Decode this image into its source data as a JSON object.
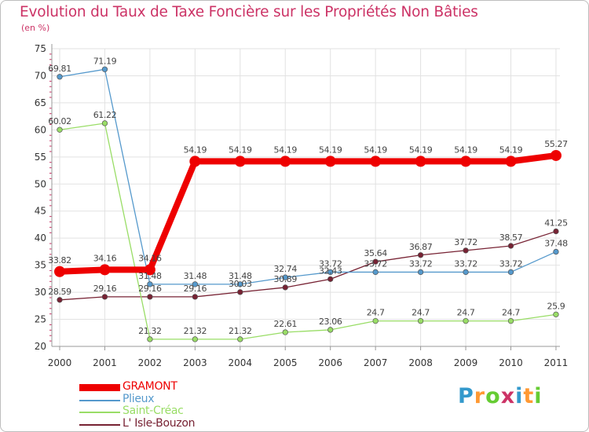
{
  "title": "Evolution du Taux de Taxe Foncière sur les Propriétés Non Bâties",
  "unit": "(en %)",
  "logo": {
    "letters": [
      "P",
      "r",
      "o",
      "x",
      "i",
      "t",
      "i"
    ],
    "colors": [
      "#3399cc",
      "#ff9933",
      "#66cc33",
      "#cc3366",
      "#3399cc",
      "#ff9933",
      "#66cc33"
    ]
  },
  "chart_data": {
    "type": "line",
    "title": "Evolution du Taux de Taxe Foncière sur les Propriétés Non Bâties",
    "ylabel": "(en %)",
    "xlabel": "",
    "ylim": [
      20,
      75
    ],
    "yticks": [
      20,
      25,
      30,
      35,
      40,
      45,
      50,
      55,
      60,
      65,
      70,
      75
    ],
    "grid": true,
    "legend": "bottom-left",
    "x": [
      "2000",
      "2001",
      "2002",
      "2003",
      "2004",
      "2005",
      "2006",
      "2007",
      "2008",
      "2009",
      "2010",
      "2011"
    ],
    "series": [
      {
        "name": "GRAMONT",
        "color": "#ee0000",
        "values": [
          33.82,
          34.16,
          34.16,
          54.19,
          54.19,
          54.19,
          54.19,
          54.19,
          54.19,
          54.19,
          54.19,
          55.27
        ],
        "labels": [
          "33.82",
          "34.16",
          "34.16",
          "54.19",
          "54.19",
          "54.19",
          "54.19",
          "54.19",
          "54.19",
          "54.19",
          "54.19",
          "55.27"
        ]
      },
      {
        "name": "Plieux",
        "color": "#5599cc",
        "values": [
          69.81,
          71.19,
          31.48,
          31.48,
          31.48,
          32.74,
          33.72,
          33.72,
          33.72,
          33.72,
          33.72,
          37.48
        ],
        "labels": [
          "69.81",
          "71.19",
          "31.48",
          "31.48",
          "31.48",
          "32.74",
          "33.72",
          "33.72",
          "33.72",
          "33.72",
          "33.72",
          "37.48"
        ]
      },
      {
        "name": "Saint-Créac",
        "color": "#99dd66",
        "values": [
          60.02,
          61.22,
          21.32,
          21.32,
          21.32,
          22.61,
          23.06,
          24.7,
          24.7,
          24.7,
          24.7,
          25.9
        ],
        "labels": [
          "60.02",
          "61.22",
          "21.32",
          "21.32",
          "21.32",
          "22.61",
          "23.06",
          "24.7",
          "24.7",
          "24.7",
          "24.7",
          "25.9"
        ]
      },
      {
        "name": "L' Isle-Bouzon",
        "color": "#772233",
        "values": [
          28.59,
          29.16,
          29.16,
          29.16,
          30.03,
          30.89,
          32.43,
          35.64,
          36.87,
          37.72,
          38.57,
          41.25
        ],
        "labels": [
          "28.59",
          "29.16",
          "29.16",
          "29.16",
          "30.03",
          "30.89",
          "32.43",
          "35.64",
          "36.87",
          "37.72",
          "38.57",
          "41.25"
        ]
      }
    ]
  }
}
